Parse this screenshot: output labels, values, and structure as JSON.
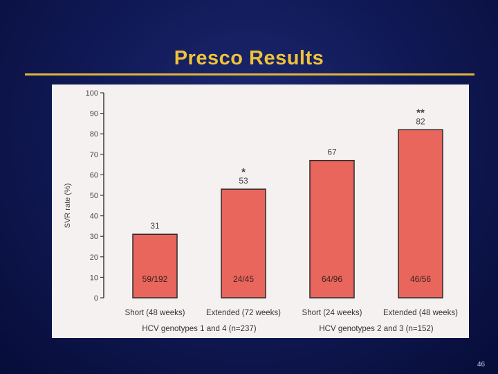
{
  "slide": {
    "title": "Presco Results",
    "page_number": "46"
  },
  "colors": {
    "background": "#111a58",
    "title": "#f0c23a",
    "rule": "#e2b63a",
    "panel": "#f6f1f1",
    "bar_fill": "#e8665c",
    "bar_stroke": "#2a2a2a",
    "axis": "#3a3a3a"
  },
  "chart_data": {
    "type": "bar",
    "title": "",
    "xlabel": "",
    "ylabel": "SVR rate (%)",
    "ylim": [
      0,
      100
    ],
    "yticks": [
      0,
      10,
      20,
      30,
      40,
      50,
      60,
      70,
      80,
      90,
      100
    ],
    "categories": [
      "Short (48 weeks)",
      "Extended (72 weeks)",
      "Short (24 weeks)",
      "Extended (48 weeks)"
    ],
    "values": [
      31,
      53,
      67,
      82
    ],
    "value_labels": [
      "31",
      "53",
      "67",
      "82"
    ],
    "significance": [
      "",
      "*",
      "",
      "**"
    ],
    "fractions": [
      "59/192",
      "24/45",
      "64/96",
      "46/56"
    ],
    "groups": [
      {
        "label": "HCV genotypes 1 and 4 (n=237)",
        "categories": [
          0,
          1
        ]
      },
      {
        "label": "HCV genotypes 2 and 3 (n=152)",
        "categories": [
          2,
          3
        ]
      }
    ],
    "grid": false,
    "legend": "none"
  }
}
